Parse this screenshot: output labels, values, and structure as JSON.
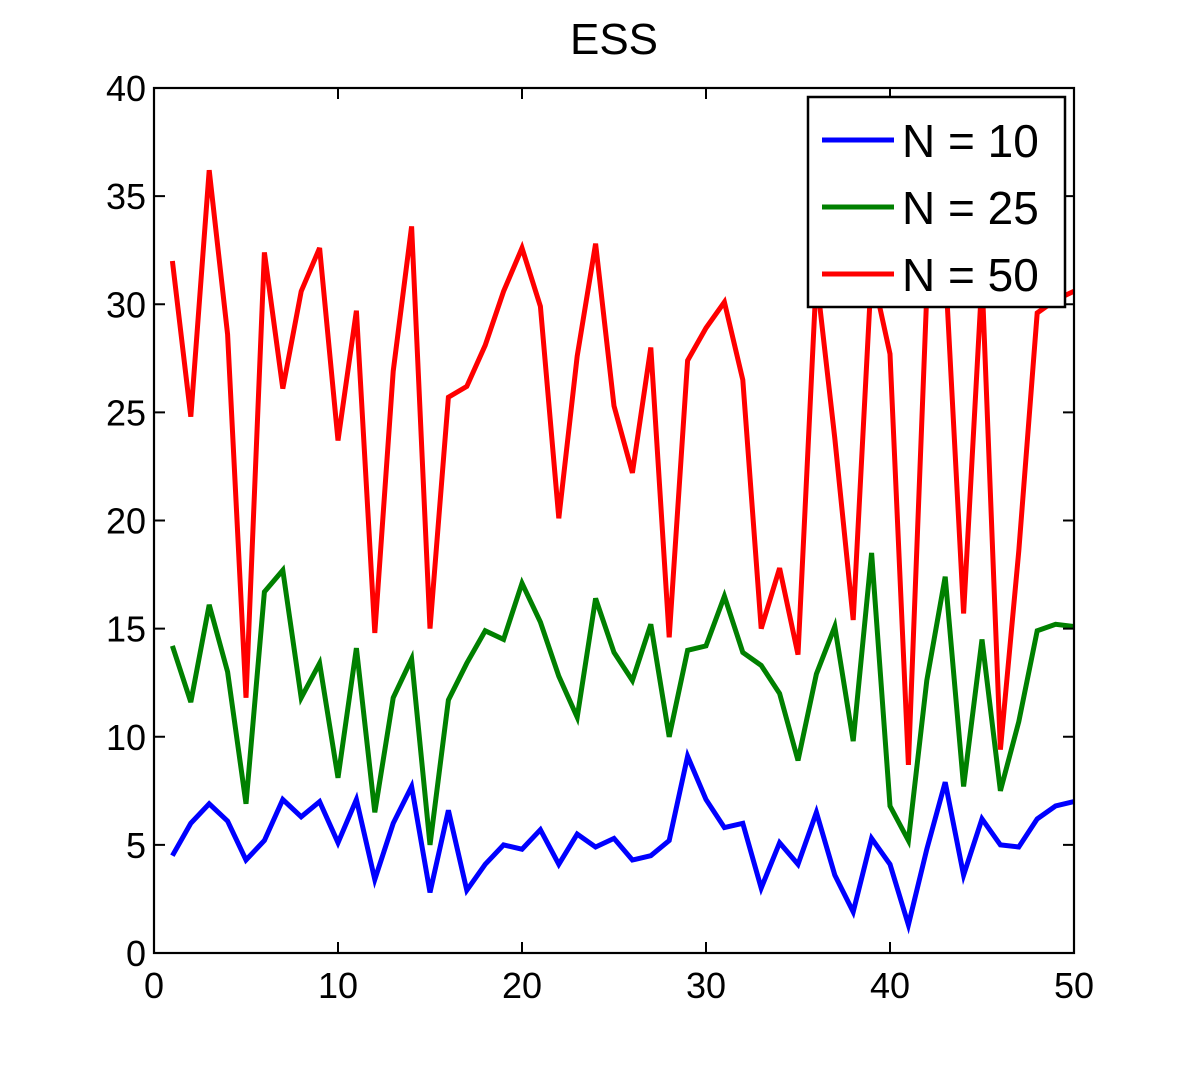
{
  "chart_data": {
    "type": "line",
    "title": "ESS",
    "xlabel": "",
    "ylabel": "",
    "xlim": [
      0,
      50
    ],
    "ylim": [
      0,
      40
    ],
    "xticks": [
      0,
      10,
      20,
      30,
      40,
      50
    ],
    "yticks": [
      0,
      5,
      10,
      15,
      20,
      25,
      30,
      35,
      40
    ],
    "grid": false,
    "legend_position": "top-right",
    "x": [
      1,
      2,
      3,
      4,
      5,
      6,
      7,
      8,
      9,
      10,
      11,
      12,
      13,
      14,
      15,
      16,
      17,
      18,
      19,
      20,
      21,
      22,
      23,
      24,
      25,
      26,
      27,
      28,
      29,
      30,
      31,
      32,
      33,
      34,
      35,
      36,
      37,
      38,
      39,
      40,
      41,
      42,
      43,
      44,
      45,
      46,
      47,
      48,
      49,
      50
    ],
    "series": [
      {
        "name": "N = 10",
        "color": "#0000ff",
        "values": [
          4.5,
          6.0,
          6.9,
          6.1,
          4.3,
          5.2,
          7.1,
          6.3,
          7.0,
          5.1,
          7.1,
          3.4,
          6.0,
          7.7,
          2.8,
          6.6,
          2.9,
          4.1,
          5.0,
          4.8,
          5.7,
          4.1,
          5.5,
          4.9,
          5.3,
          4.3,
          4.5,
          5.2,
          9.1,
          7.1,
          5.8,
          6.0,
          3.0,
          5.1,
          4.1,
          6.5,
          3.6,
          1.9,
          5.3,
          4.1,
          1.3,
          4.8,
          7.9,
          3.6,
          6.2,
          5.0,
          4.9,
          6.2,
          6.8,
          7.0
        ]
      },
      {
        "name": "N = 25",
        "color": "#008000",
        "values": [
          14.2,
          11.6,
          16.1,
          13.0,
          6.9,
          16.7,
          17.7,
          11.8,
          13.4,
          8.1,
          14.1,
          6.5,
          11.8,
          13.6,
          5.0,
          11.7,
          13.4,
          14.9,
          14.5,
          17.1,
          15.3,
          12.8,
          10.9,
          16.4,
          13.9,
          12.6,
          15.2,
          10.0,
          14.0,
          14.2,
          16.5,
          13.9,
          13.3,
          12.0,
          8.9,
          12.9,
          15.1,
          9.8,
          18.5,
          6.8,
          5.2,
          12.6,
          17.4,
          7.7,
          14.5,
          7.5,
          10.7,
          14.9,
          15.2,
          15.1
        ]
      },
      {
        "name": "N = 50",
        "color": "#ff0000",
        "values": [
          32.0,
          24.8,
          36.2,
          28.6,
          11.8,
          32.4,
          26.1,
          30.6,
          32.6,
          23.7,
          29.7,
          14.8,
          26.9,
          33.6,
          15.0,
          25.7,
          26.2,
          28.1,
          30.6,
          32.6,
          29.9,
          20.1,
          27.6,
          32.8,
          25.3,
          22.2,
          28.0,
          14.6,
          27.4,
          28.9,
          30.1,
          26.5,
          15.0,
          17.8,
          13.8,
          31.3,
          23.8,
          15.4,
          31.6,
          27.7,
          8.7,
          30.5,
          31.8,
          15.7,
          31.2,
          9.4,
          18.6,
          29.6,
          30.2,
          30.6
        ]
      }
    ]
  }
}
